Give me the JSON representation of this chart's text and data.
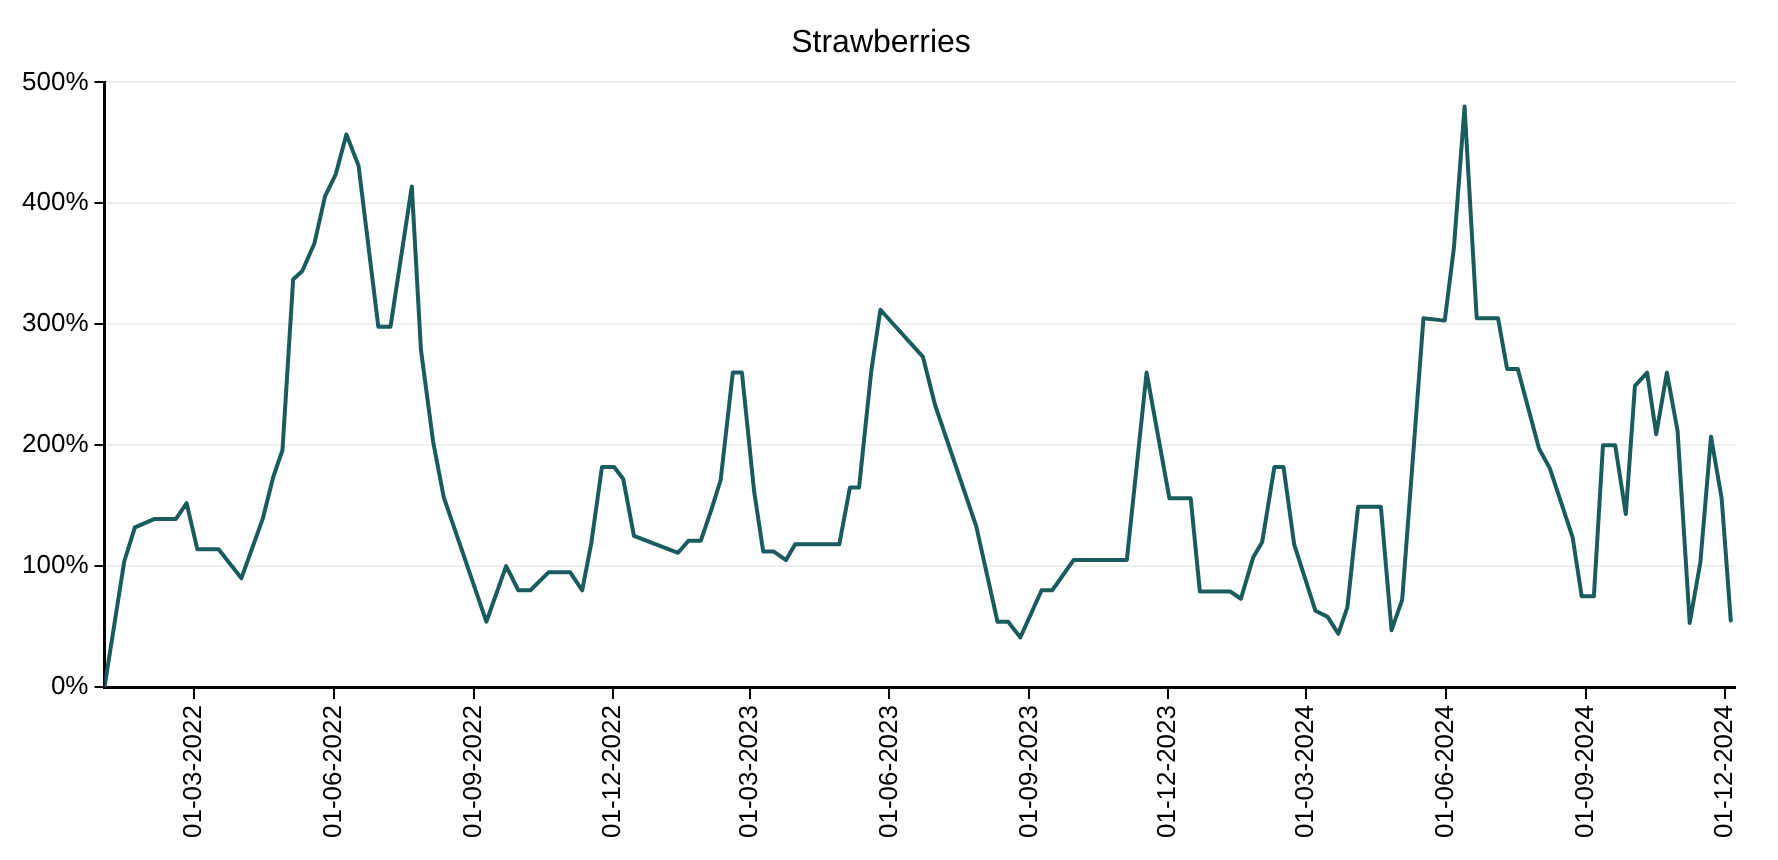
{
  "chart_data": {
    "type": "line",
    "title": "Strawberries",
    "x": [
      "2022-01-01",
      "2022-01-14",
      "2022-01-21",
      "2022-02-03",
      "2022-02-17",
      "2022-02-24",
      "2022-03-03",
      "2022-03-17",
      "2022-04-01",
      "2022-04-15",
      "2022-04-22",
      "2022-04-28",
      "2022-05-05",
      "2022-05-11",
      "2022-05-19",
      "2022-05-26",
      "2022-06-02",
      "2022-06-09",
      "2022-06-17",
      "2022-06-30",
      "2022-07-08",
      "2022-07-22",
      "2022-07-28",
      "2022-08-05",
      "2022-08-12",
      "2022-09-09",
      "2022-09-22",
      "2022-09-30",
      "2022-10-08",
      "2022-10-20",
      "2022-11-03",
      "2022-11-11",
      "2022-11-17",
      "2022-11-24",
      "2022-12-02",
      "2022-12-08",
      "2022-12-15",
      "2023-01-13",
      "2023-01-20",
      "2023-01-28",
      "2023-02-04",
      "2023-02-10",
      "2023-02-18",
      "2023-02-24",
      "2023-03-04",
      "2023-03-10",
      "2023-03-17",
      "2023-03-25",
      "2023-03-31",
      "2023-04-29",
      "2023-05-06",
      "2023-05-12",
      "2023-05-20",
      "2023-05-26",
      "2023-06-23",
      "2023-07-01",
      "2023-07-28",
      "2023-08-11",
      "2023-08-18",
      "2023-08-26",
      "2023-09-09",
      "2023-09-16",
      "2023-09-30",
      "2023-11-04",
      "2023-11-17",
      "2023-12-02",
      "2023-12-16",
      "2023-12-22",
      "2024-01-11",
      "2024-01-18",
      "2024-01-26",
      "2024-02-01",
      "2024-02-09",
      "2024-02-15",
      "2024-02-22",
      "2024-03-07",
      "2024-03-15",
      "2024-03-22",
      "2024-03-28",
      "2024-04-04",
      "2024-04-19",
      "2024-04-26",
      "2024-05-03",
      "2024-05-17",
      "2024-05-31",
      "2024-06-06",
      "2024-06-13",
      "2024-06-21",
      "2024-07-05",
      "2024-07-11",
      "2024-07-18",
      "2024-08-01",
      "2024-08-08",
      "2024-08-23",
      "2024-08-29",
      "2024-09-06",
      "2024-09-12",
      "2024-09-20",
      "2024-09-27",
      "2024-10-03",
      "2024-10-11",
      "2024-10-17",
      "2024-10-24",
      "2024-10-31",
      "2024-11-08",
      "2024-11-15",
      "2024-11-22",
      "2024-11-29",
      "2024-12-05"
    ],
    "series": [
      {
        "color": "#1a5c5e",
        "values": [
          0,
          104,
          132,
          139,
          139,
          152,
          114,
          114,
          90,
          139,
          174,
          196,
          337,
          344,
          367,
          406,
          424,
          457,
          431,
          298,
          298,
          414,
          279,
          203,
          157,
          54,
          100,
          80,
          80,
          95,
          95,
          80,
          119,
          182,
          182,
          172,
          125,
          111,
          121,
          121,
          147,
          171,
          260,
          260,
          162,
          112,
          112,
          105,
          118,
          118,
          165,
          165,
          261,
          312,
          273,
          233,
          133,
          54,
          54,
          41,
          80,
          80,
          105,
          105,
          260,
          156,
          156,
          79,
          79,
          73,
          107,
          120,
          182,
          182,
          118,
          63,
          58,
          44,
          66,
          149,
          149,
          47,
          72,
          305,
          303,
          363,
          480,
          305,
          305,
          263,
          263,
          197,
          181,
          124,
          75,
          75,
          200,
          200,
          143,
          249,
          260,
          209,
          260,
          212,
          53,
          103,
          207,
          156,
          55
        ]
      }
    ],
    "xlim": [
      "2022-01-01",
      "2024-12-08"
    ],
    "xticks": [
      {
        "value": "2022-03-01",
        "label": "01-03-2022"
      },
      {
        "value": "2022-06-01",
        "label": "01-06-2022"
      },
      {
        "value": "2022-09-01",
        "label": "01-09-2022"
      },
      {
        "value": "2022-12-01",
        "label": "01-12-2022"
      },
      {
        "value": "2023-03-01",
        "label": "01-03-2023"
      },
      {
        "value": "2023-06-01",
        "label": "01-06-2023"
      },
      {
        "value": "2023-09-01",
        "label": "01-09-2023"
      },
      {
        "value": "2023-12-01",
        "label": "01-12-2023"
      },
      {
        "value": "2024-03-01",
        "label": "01-03-2024"
      },
      {
        "value": "2024-06-01",
        "label": "01-06-2024"
      },
      {
        "value": "2024-09-01",
        "label": "01-09-2024"
      },
      {
        "value": "2024-12-01",
        "label": "01-12-2024"
      }
    ],
    "ylim": [
      0,
      500
    ],
    "yticks": [
      {
        "value": 0,
        "label": "0%"
      },
      {
        "value": 100,
        "label": "100%"
      },
      {
        "value": 200,
        "label": "200%"
      },
      {
        "value": 300,
        "label": "300%"
      },
      {
        "value": 400,
        "label": "400%"
      },
      {
        "value": 500,
        "label": "500%"
      }
    ],
    "grid": "y",
    "legend": false,
    "marker": "none",
    "line_style": "solid"
  }
}
